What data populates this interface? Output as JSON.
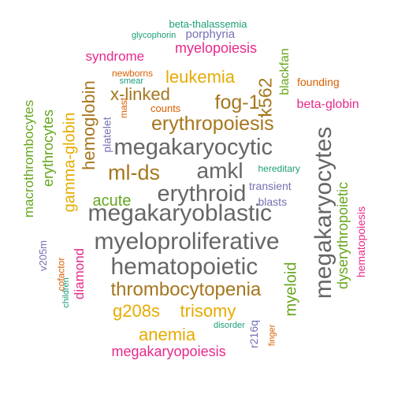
{
  "colors": {
    "teal": "#1b9e77",
    "orange": "#d95f02",
    "purple": "#7570b3",
    "magenta": "#e7298a",
    "green": "#66a61e",
    "gold": "#e6ab02",
    "brown": "#a6761d",
    "gray": "#666666"
  },
  "words": [
    {
      "id": "megakaryocytes",
      "text": "megakaryocytes",
      "color": "gray",
      "rotated": true
    },
    {
      "id": "megakaryoblastic",
      "text": "megakaryoblastic",
      "color": "gray",
      "rotated": false
    },
    {
      "id": "myeloproliferative",
      "text": "myeloproliferative",
      "color": "gray",
      "rotated": false
    },
    {
      "id": "megakaryocytic",
      "text": "megakaryocytic",
      "color": "gray",
      "rotated": false
    },
    {
      "id": "hematopoietic",
      "text": "hematopoietic",
      "color": "gray",
      "rotated": false
    },
    {
      "id": "erythroid",
      "text": "erythroid",
      "color": "gray",
      "rotated": false
    },
    {
      "id": "amkl",
      "text": "amkl",
      "color": "gray",
      "rotated": false
    },
    {
      "id": "erythropoiesis",
      "text": "erythropoiesis",
      "color": "brown",
      "rotated": false
    },
    {
      "id": "thrombocytopenia",
      "text": "thrombocytopenia",
      "color": "brown",
      "rotated": false
    },
    {
      "id": "ml-ds",
      "text": "ml-ds",
      "color": "brown",
      "rotated": false
    },
    {
      "id": "fog-1",
      "text": "fog-1",
      "color": "brown",
      "rotated": false
    },
    {
      "id": "x-linked",
      "text": "x-linked",
      "color": "brown",
      "rotated": false
    },
    {
      "id": "hemoglobin",
      "text": "hemoglobin",
      "color": "brown",
      "rotated": true
    },
    {
      "id": "k562",
      "text": "k562",
      "color": "brown",
      "rotated": true
    },
    {
      "id": "leukemia",
      "text": "leukemia",
      "color": "gold",
      "rotated": false
    },
    {
      "id": "gamma-globin",
      "text": "gamma-globin",
      "color": "gold",
      "rotated": true
    },
    {
      "id": "g208s",
      "text": "g208s",
      "color": "gold",
      "rotated": false
    },
    {
      "id": "trisomy",
      "text": "trisomy",
      "color": "gold",
      "rotated": false
    },
    {
      "id": "anemia",
      "text": "anemia",
      "color": "gold",
      "rotated": false
    },
    {
      "id": "acute",
      "text": "acute",
      "color": "green",
      "rotated": false
    },
    {
      "id": "macrothrombocytes",
      "text": "macrothrombocytes",
      "color": "green",
      "rotated": true
    },
    {
      "id": "erythrocytes",
      "text": "erythrocytes",
      "color": "green",
      "rotated": true
    },
    {
      "id": "dyserythropoietic",
      "text": "dyserythropoietic",
      "color": "green",
      "rotated": true
    },
    {
      "id": "myeloid",
      "text": "myeloid",
      "color": "green",
      "rotated": true
    },
    {
      "id": "blackfan",
      "text": "blackfan",
      "color": "green",
      "rotated": true
    },
    {
      "id": "myelopoiesis",
      "text": "myelopoiesis",
      "color": "magenta",
      "rotated": false
    },
    {
      "id": "syndrome",
      "text": "syndrome",
      "color": "magenta",
      "rotated": false
    },
    {
      "id": "beta-globin",
      "text": "beta-globin",
      "color": "magenta",
      "rotated": false
    },
    {
      "id": "hematopoiesis",
      "text": "hematopoiesis",
      "color": "magenta",
      "rotated": true
    },
    {
      "id": "megakaryopoiesis",
      "text": "megakaryopoiesis",
      "color": "magenta",
      "rotated": false
    },
    {
      "id": "diamond",
      "text": "diamond",
      "color": "magenta",
      "rotated": true
    },
    {
      "id": "platelet",
      "text": "platelet",
      "color": "purple",
      "rotated": true
    },
    {
      "id": "blasts",
      "text": "blasts",
      "color": "purple",
      "rotated": false
    },
    {
      "id": "transient",
      "text": "transient",
      "color": "purple",
      "rotated": false
    },
    {
      "id": "porphyria",
      "text": "porphyria",
      "color": "purple",
      "rotated": false
    },
    {
      "id": "v205m",
      "text": "v205m",
      "color": "purple",
      "rotated": true
    },
    {
      "id": "r216q",
      "text": "r216q",
      "color": "purple",
      "rotated": true
    },
    {
      "id": "founding",
      "text": "founding",
      "color": "orange",
      "rotated": false
    },
    {
      "id": "newborns",
      "text": "newborns",
      "color": "orange",
      "rotated": false
    },
    {
      "id": "counts",
      "text": "counts",
      "color": "orange",
      "rotated": false
    },
    {
      "id": "mast",
      "text": "mast",
      "color": "orange",
      "rotated": true
    },
    {
      "id": "cofactor",
      "text": "cofactor",
      "color": "orange",
      "rotated": true
    },
    {
      "id": "finger",
      "text": "finger",
      "color": "orange",
      "rotated": true
    },
    {
      "id": "beta-thalassemia",
      "text": "beta-thalassemia",
      "color": "teal",
      "rotated": false
    },
    {
      "id": "glycophorin",
      "text": "glycophorin",
      "color": "teal",
      "rotated": false
    },
    {
      "id": "smear",
      "text": "smear",
      "color": "teal",
      "rotated": false
    },
    {
      "id": "hereditary",
      "text": "hereditary",
      "color": "teal",
      "rotated": false
    },
    {
      "id": "disorder",
      "text": "disorder",
      "color": "teal",
      "rotated": false
    },
    {
      "id": "children",
      "text": "children",
      "color": "teal",
      "rotated": true
    }
  ]
}
